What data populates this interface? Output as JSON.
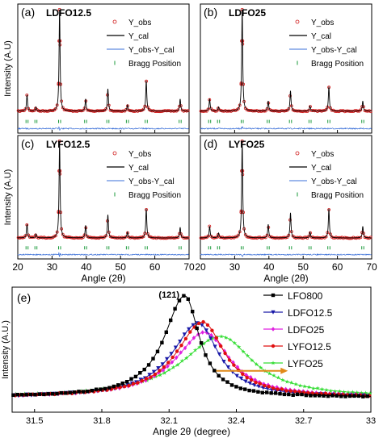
{
  "chart_data": [
    {
      "type": "line",
      "panel": "(a)",
      "title": "LDFO12.5",
      "legend": [
        "Y_obs",
        "Y_cal",
        "Y_obs-Y_cal",
        "Bragg Position"
      ],
      "ylabel": "Intensity (A.U)",
      "xlim": [
        20,
        70
      ],
      "peaks": [
        [
          22.7,
          0.16
        ],
        [
          25.3,
          0.04
        ],
        [
          32.2,
          1.0
        ],
        [
          39.8,
          0.12
        ],
        [
          46.3,
          0.22
        ],
        [
          52.0,
          0.06
        ],
        [
          57.5,
          0.3
        ],
        [
          67.4,
          0.12
        ]
      ]
    },
    {
      "type": "line",
      "panel": "(b)",
      "title": "LDFO25",
      "legend": [
        "Y_obs",
        "Y_cal",
        "Y_obs-Y_cal",
        "Bragg Position"
      ],
      "xlim": [
        20,
        70
      ],
      "peaks": [
        [
          22.7,
          0.12
        ],
        [
          25.3,
          0.04
        ],
        [
          32.2,
          1.0
        ],
        [
          39.8,
          0.1
        ],
        [
          46.3,
          0.2
        ],
        [
          52.0,
          0.05
        ],
        [
          57.5,
          0.24
        ],
        [
          67.4,
          0.1
        ]
      ]
    },
    {
      "type": "line",
      "panel": "(c)",
      "title": "LYFO12.5",
      "legend": [
        "Y_obs",
        "Y_cal",
        "Y_obs-Y_cal",
        "Bragg Position"
      ],
      "ylabel": "Intensity (A.U)",
      "xlabel": "Angle (2θ)",
      "xlim": [
        20,
        70
      ],
      "xticks": [
        20,
        30,
        40,
        50,
        60,
        70
      ],
      "peaks": [
        [
          22.7,
          0.14
        ],
        [
          25.3,
          0.04
        ],
        [
          32.2,
          1.0
        ],
        [
          39.8,
          0.13
        ],
        [
          46.3,
          0.24
        ],
        [
          52.0,
          0.06
        ],
        [
          57.5,
          0.3
        ],
        [
          67.4,
          0.11
        ]
      ]
    },
    {
      "type": "line",
      "panel": "(d)",
      "title": "LYFO25",
      "legend": [
        "Y_obs",
        "Y_cal",
        "Y_obs-Y_cal",
        "Bragg Position"
      ],
      "xlabel": "Angle (2θ)",
      "xlim": [
        20,
        70
      ],
      "xticks": [
        20,
        30,
        40,
        50,
        60,
        70
      ],
      "peaks": [
        [
          22.7,
          0.12
        ],
        [
          25.3,
          0.05
        ],
        [
          32.2,
          1.0
        ],
        [
          39.8,
          0.14
        ],
        [
          46.3,
          0.26
        ],
        [
          52.0,
          0.06
        ],
        [
          57.5,
          0.3
        ],
        [
          67.4,
          0.12
        ]
      ]
    },
    {
      "type": "line",
      "panel": "(e)",
      "annotation": "(121)",
      "xlabel": "Angle 2θ (degree)",
      "ylabel": "Intensity (A.U.)",
      "xlim": [
        31.4,
        33.0
      ],
      "xticks": [
        31.5,
        31.8,
        32.1,
        32.4,
        32.7,
        33.0
      ],
      "series": [
        {
          "name": "LFO800",
          "color": "#000000",
          "marker": "square",
          "center": 32.17,
          "height": 1.0,
          "w_left": 0.14,
          "w_right": 0.1
        },
        {
          "name": "LDFO12.5",
          "color": "#1a1aa8",
          "marker": "triangle",
          "center": 32.23,
          "height": 0.73,
          "w_left": 0.18,
          "w_right": 0.14
        },
        {
          "name": "LDFO25",
          "color": "#e020e0",
          "marker": "diamond",
          "center": 32.26,
          "height": 0.64,
          "w_left": 0.2,
          "w_right": 0.17
        },
        {
          "name": "LYFO12.5",
          "color": "#e01010",
          "marker": "circle",
          "center": 32.25,
          "height": 0.74,
          "w_left": 0.18,
          "w_right": 0.15
        },
        {
          "name": "LYFO25",
          "color": "#33dd33",
          "marker": "star",
          "center": 32.33,
          "height": 0.6,
          "w_left": 0.26,
          "w_right": 0.22
        }
      ],
      "arrow": {
        "from": 32.31,
        "to": 32.63,
        "y": 0.28,
        "color": "#e08a1a"
      }
    }
  ]
}
